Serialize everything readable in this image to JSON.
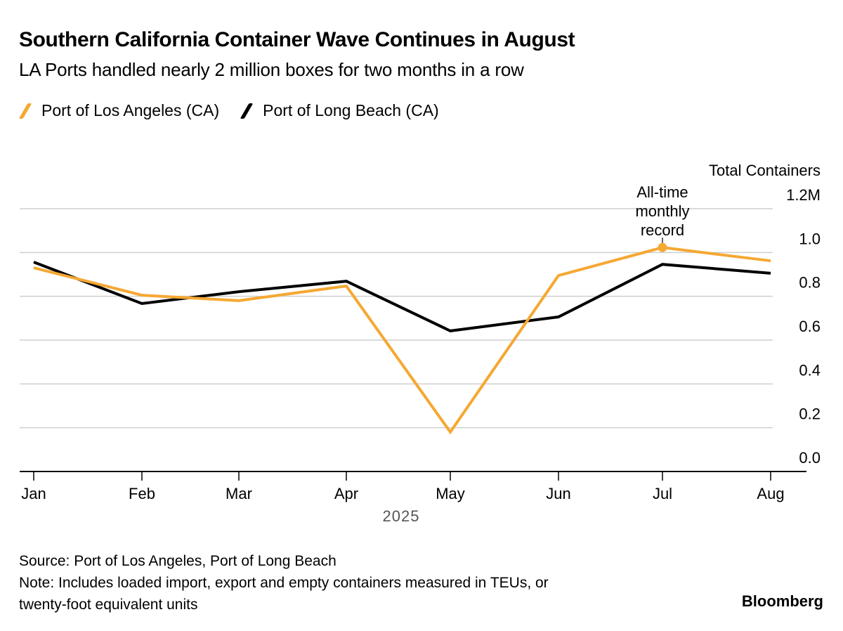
{
  "header": {
    "title": "Southern California Container Wave Continues in August",
    "subtitle": "LA Ports handled nearly 2 million boxes for two months in a row"
  },
  "footer": {
    "source": "Source: Port of Los Angeles, Port of Long Beach",
    "note_line1": "Note: Includes loaded import, export and empty containers measured in TEUs, or",
    "note_line2": "twenty-foot equivalent units",
    "brand": "Bloomberg"
  },
  "chart_data": {
    "type": "line",
    "title": "Southern California Container Wave Continues in August",
    "subtitle": "LA Ports handled nearly 2 million boxes for two months in a row",
    "xlabel": "2025",
    "ylabel": "Total Containers",
    "categories": [
      "Jan",
      "Feb",
      "Mar",
      "Apr",
      "May",
      "Jun",
      "Jul",
      "Aug"
    ],
    "ylim": [
      0,
      1.2
    ],
    "y_ticks": [
      {
        "value": 1.2,
        "label": "1.2M"
      },
      {
        "value": 1.0,
        "label": "1.0"
      },
      {
        "value": 0.8,
        "label": "0.8"
      },
      {
        "value": 0.6,
        "label": "0.6"
      },
      {
        "value": 0.4,
        "label": "0.4"
      },
      {
        "value": 0.2,
        "label": "0.2"
      },
      {
        "value": 0.0,
        "label": "0.0"
      }
    ],
    "y_axis_position": "right",
    "grid": true,
    "legend_position": "top-left",
    "series": [
      {
        "name": "Port of Los Angeles (CA)",
        "color": "#f5a833",
        "values": [
          0.93,
          0.805,
          0.78,
          0.847,
          0.18,
          0.895,
          1.023,
          0.962
        ]
      },
      {
        "name": "Port of Long Beach (CA)",
        "color": "#000000",
        "values": [
          0.956,
          0.767,
          0.821,
          0.869,
          0.642,
          0.706,
          0.946,
          0.905
        ]
      }
    ],
    "annotations": [
      {
        "series": 0,
        "category": "Jul",
        "lines": [
          "All-time",
          "monthly",
          "record"
        ]
      }
    ]
  }
}
